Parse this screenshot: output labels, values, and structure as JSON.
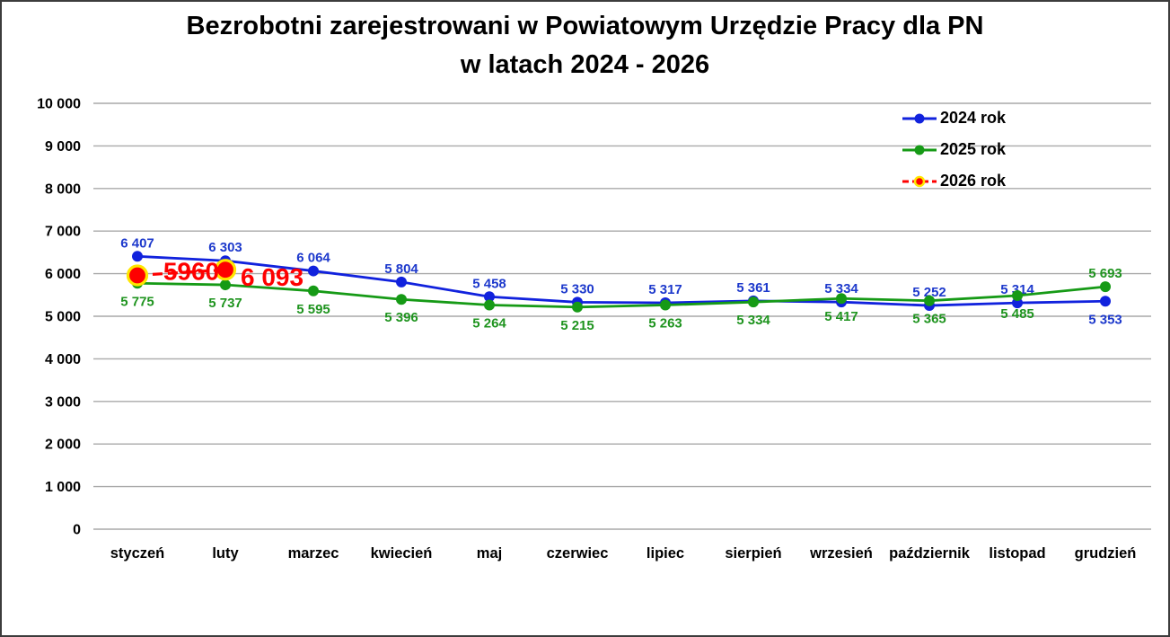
{
  "title": {
    "line1": "Bezrobotni zarejestrowani w Powiatowym Urzędzie Pracy dla PN",
    "line2": "w latach 2024 - 2026"
  },
  "colors": {
    "background": "#FFFFFF",
    "figure_border": "#3C3C3C",
    "gridline": "#A9A9A9",
    "axis_text": "#000000",
    "series_2024": "#1122DD",
    "series_2024_label": "#1D39CC",
    "series_2025": "#169A16",
    "series_2025_label": "#1F941F",
    "series_2026": "#FE0000",
    "series_2026_marker_ring": "#FFE600"
  },
  "chart_data": {
    "type": "line",
    "title": "Bezrobotni zarejestrowani w Powiatowym Urzędzie Pracy dla PN w latach 2024 - 2026",
    "categories": [
      "styczeń",
      "luty",
      "marzec",
      "kwiecień",
      "maj",
      "czerwiec",
      "lipiec",
      "sierpień",
      "wrzesień",
      "październik",
      "listopad",
      "grudzień"
    ],
    "xlabel": "",
    "ylabel": "",
    "ylim": [
      0,
      10000
    ],
    "ytick_step": 1000,
    "ytick_labels": [
      "0",
      "1 000",
      "2 000",
      "3 000",
      "4 000",
      "5 000",
      "6 000",
      "7 000",
      "8 000",
      "9 000",
      "10 000"
    ],
    "grid": true,
    "legend_position": "top-right",
    "series": [
      {
        "name": "2024 rok",
        "color": "#1122DD",
        "label_color": "#1D39CC",
        "line_style": "solid",
        "marker": "circle",
        "values": [
          6407,
          6303,
          6064,
          5804,
          5458,
          5330,
          5317,
          5361,
          5334,
          5252,
          5314,
          5353
        ],
        "labels": [
          "6 407",
          "6 303",
          "6 064",
          "5 804",
          "5 458",
          "5 330",
          "5 317",
          "5 361",
          "5 334",
          "5 252",
          "5 314",
          "5 353"
        ],
        "label_side": [
          "above",
          "above",
          "above",
          "above",
          "above",
          "above",
          "above",
          "above",
          "above",
          "above",
          "above",
          "below"
        ]
      },
      {
        "name": "2025 rok",
        "color": "#169A16",
        "label_color": "#1F941F",
        "line_style": "solid",
        "marker": "circle",
        "values": [
          5775,
          5737,
          5595,
          5396,
          5264,
          5215,
          5263,
          5334,
          5417,
          5365,
          5485,
          5693
        ],
        "labels": [
          "5 775",
          "5 737",
          "5 595",
          "5 396",
          "5 264",
          "5 215",
          "5 263",
          "5 334",
          "5 417",
          "5 365",
          "5 485",
          "5 693"
        ],
        "label_side": [
          "below",
          "below",
          "below",
          "below",
          "below",
          "below",
          "below",
          "below",
          "below",
          "below",
          "below",
          "above"
        ]
      },
      {
        "name": "2026 rok",
        "color": "#FE0000",
        "label_color": "#FE0000",
        "line_style": "dashed",
        "marker": "circle-ring",
        "marker_ring_color": "#FFE600",
        "values": [
          5960,
          6093,
          null,
          null,
          null,
          null,
          null,
          null,
          null,
          null,
          null,
          null
        ],
        "labels": [
          "5960",
          "6 093"
        ],
        "label_style": "large"
      }
    ]
  }
}
